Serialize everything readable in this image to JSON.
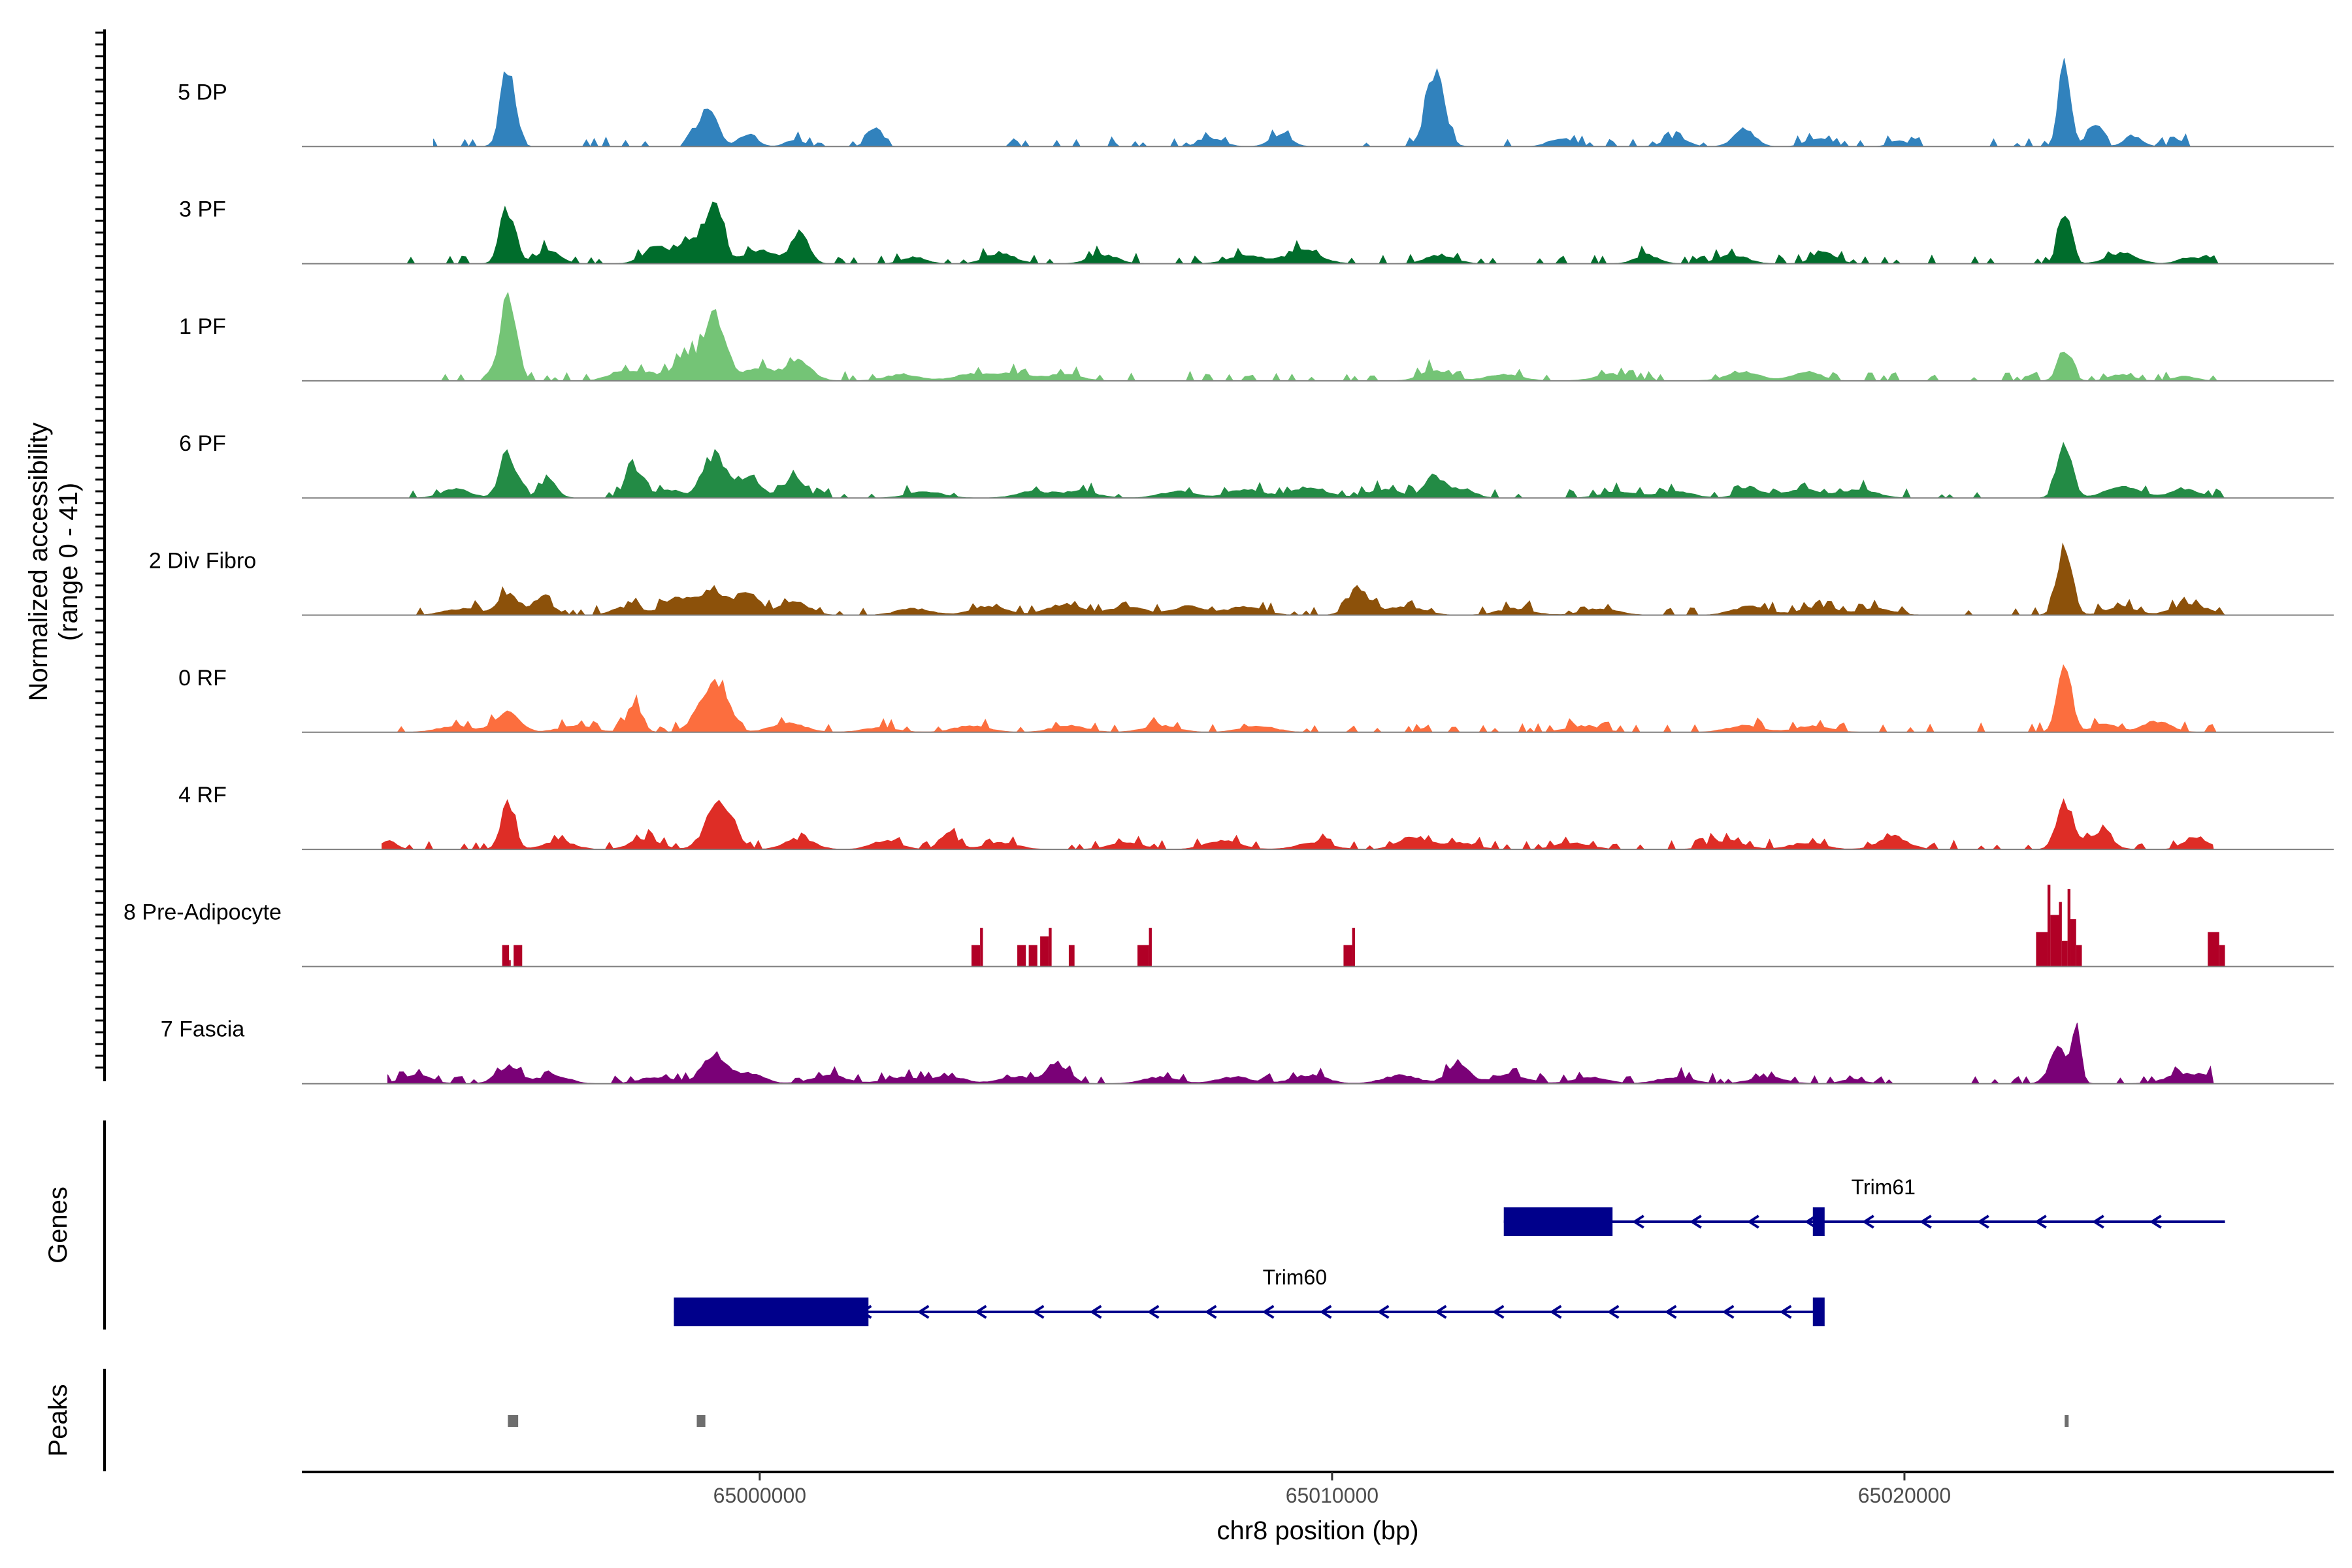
{
  "chart_data": {
    "type": "coverage-track",
    "title": "",
    "ylabel_line1": "Normalized accessibility",
    "ylabel_line2": "(range 0 - 41)",
    "y_range": [
      0,
      41
    ],
    "xlabel": "chr8 position (bp)",
    "x_range": [
      64992000,
      65027500
    ],
    "x_ticks": [
      {
        "value": 65000000,
        "label": "65000000"
      },
      {
        "value": 65010000,
        "label": "65010000"
      },
      {
        "value": 65020000,
        "label": "65020000"
      }
    ],
    "genes_label": "Genes",
    "peaks_label": "Peaks",
    "tracks": [
      {
        "name": "5 DP",
        "color": "#3182bd",
        "start": 64994300,
        "end": 65025000,
        "peaks": [
          [
            64995600,
            38,
            120
          ],
          [
            65002000,
            8,
            120
          ],
          [
            64999100,
            18,
            160
          ],
          [
            64999800,
            6,
            150
          ],
          [
            65000600,
            3,
            150
          ],
          [
            65007900,
            4,
            200
          ],
          [
            65009100,
            5,
            180
          ],
          [
            65011800,
            34,
            160
          ],
          [
            65014000,
            4,
            200
          ],
          [
            65016000,
            4,
            200
          ],
          [
            65017200,
            8,
            180
          ],
          [
            65018500,
            4,
            200
          ],
          [
            65019900,
            3,
            150
          ],
          [
            65022800,
            40,
            100
          ],
          [
            65023300,
            10,
            120
          ],
          [
            65024000,
            5,
            150
          ],
          [
            65024800,
            3,
            100
          ]
        ]
      },
      {
        "name": "3 PF",
        "color": "#006d2c",
        "start": 64993700,
        "end": 65025500,
        "peaks": [
          [
            64995600,
            25,
            130
          ],
          [
            64996300,
            6,
            200
          ],
          [
            64998200,
            8,
            220
          ],
          [
            64998800,
            10,
            200
          ],
          [
            64999200,
            28,
            150
          ],
          [
            65000000,
            6,
            300
          ],
          [
            65000700,
            14,
            150
          ],
          [
            65002700,
            3,
            200
          ],
          [
            65004200,
            5,
            250
          ],
          [
            65006000,
            4,
            250
          ],
          [
            65008500,
            4,
            300
          ],
          [
            65009500,
            6,
            300
          ],
          [
            65011900,
            4,
            250
          ],
          [
            65015500,
            4,
            200
          ],
          [
            65017000,
            4,
            250
          ],
          [
            65018600,
            5,
            200
          ],
          [
            65022800,
            22,
            110
          ],
          [
            65023800,
            5,
            250
          ],
          [
            65025000,
            3,
            200
          ]
        ]
      },
      {
        "name": "1 PF",
        "color": "#74c476",
        "start": 64994300,
        "end": 65025500,
        "peaks": [
          [
            64995600,
            41,
            140
          ],
          [
            64997600,
            4,
            250
          ],
          [
            64998100,
            3,
            300
          ],
          [
            64998700,
            12,
            180
          ],
          [
            64999200,
            28,
            180
          ],
          [
            65000000,
            6,
            300
          ],
          [
            65000700,
            8,
            220
          ],
          [
            65002500,
            3,
            300
          ],
          [
            65003700,
            3,
            300
          ],
          [
            65004400,
            3,
            300
          ],
          [
            65005300,
            3,
            300
          ],
          [
            65011800,
            5,
            250
          ],
          [
            65013000,
            3,
            300
          ],
          [
            65014900,
            3,
            300
          ],
          [
            65017200,
            4,
            300
          ],
          [
            65018300,
            4,
            250
          ],
          [
            65022800,
            14,
            120
          ],
          [
            65023800,
            3,
            200
          ],
          [
            65024900,
            2,
            200
          ]
        ]
      },
      {
        "name": "6 PF",
        "color": "#238b45",
        "start": 64993600,
        "end": 65025600,
        "peaks": [
          [
            64995600,
            22,
            140
          ],
          [
            64996300,
            8,
            150
          ],
          [
            64994700,
            4,
            250
          ],
          [
            64997800,
            14,
            150
          ],
          [
            64998400,
            4,
            200
          ],
          [
            64999200,
            20,
            200
          ],
          [
            64999800,
            10,
            200
          ],
          [
            65000600,
            10,
            180
          ],
          [
            65002900,
            3,
            300
          ],
          [
            65004800,
            3,
            300
          ],
          [
            65005600,
            3,
            300
          ],
          [
            65007300,
            3,
            300
          ],
          [
            65008500,
            4,
            300
          ],
          [
            65009600,
            5,
            300
          ],
          [
            65010900,
            4,
            300
          ],
          [
            65011800,
            10,
            180
          ],
          [
            65012300,
            4,
            200
          ],
          [
            65015000,
            3,
            300
          ],
          [
            65016000,
            3,
            300
          ],
          [
            65017300,
            5,
            200
          ],
          [
            65018200,
            4,
            300
          ],
          [
            65019200,
            4,
            300
          ],
          [
            65022800,
            24,
            130
          ],
          [
            65023800,
            5,
            300
          ],
          [
            65024900,
            4,
            250
          ]
        ]
      },
      {
        "name": "2 Div Fibro",
        "color": "#8c510a",
        "start": 64994000,
        "end": 65025600,
        "peaks": [
          [
            64994800,
            3,
            300
          ],
          [
            64995600,
            10,
            180
          ],
          [
            64996200,
            8,
            180
          ],
          [
            64997700,
            4,
            250
          ],
          [
            64998600,
            8,
            250
          ],
          [
            64999200,
            12,
            200
          ],
          [
            64999800,
            10,
            200
          ],
          [
            65000600,
            6,
            250
          ],
          [
            65002700,
            3,
            300
          ],
          [
            65004000,
            4,
            300
          ],
          [
            65005300,
            5,
            300
          ],
          [
            65006400,
            4,
            300
          ],
          [
            65007500,
            4,
            300
          ],
          [
            65008500,
            4,
            300
          ],
          [
            65010500,
            10,
            200
          ],
          [
            65011300,
            4,
            300
          ],
          [
            65013200,
            3,
            300
          ],
          [
            65014700,
            3,
            300
          ],
          [
            65017300,
            4,
            300
          ],
          [
            65018500,
            4,
            300
          ],
          [
            65019500,
            3,
            300
          ],
          [
            65022800,
            30,
            130
          ],
          [
            65023800,
            4,
            250
          ],
          [
            65025000,
            5,
            300
          ]
        ]
      },
      {
        "name": "0 RF",
        "color": "#fc6e3e",
        "start": 64993600,
        "end": 65025600,
        "peaks": [
          [
            64995600,
            10,
            200
          ],
          [
            64994700,
            3,
            300
          ],
          [
            64996800,
            3,
            300
          ],
          [
            64997800,
            12,
            130
          ],
          [
            64999000,
            10,
            200
          ],
          [
            64999300,
            20,
            180
          ],
          [
            65000500,
            4,
            300
          ],
          [
            65002100,
            2,
            300
          ],
          [
            65003700,
            3,
            300
          ],
          [
            65005400,
            3,
            300
          ],
          [
            65007000,
            3,
            300
          ],
          [
            65008700,
            3,
            300
          ],
          [
            65014400,
            3,
            300
          ],
          [
            65017200,
            3,
            300
          ],
          [
            65018400,
            3,
            300
          ],
          [
            65022800,
            34,
            120
          ],
          [
            65023500,
            4,
            200
          ],
          [
            65024400,
            5,
            250
          ]
        ]
      },
      {
        "name": "4 RF",
        "color": "#de2d26",
        "start": 64993400,
        "end": 65025400,
        "peaks": [
          [
            64993500,
            4,
            150
          ],
          [
            64995600,
            22,
            120
          ],
          [
            64996500,
            4,
            250
          ],
          [
            64998000,
            5,
            250
          ],
          [
            64999300,
            24,
            220
          ],
          [
            65000700,
            5,
            250
          ],
          [
            65002200,
            4,
            250
          ],
          [
            65003300,
            8,
            150
          ],
          [
            65004200,
            3,
            300
          ],
          [
            65006400,
            3,
            300
          ],
          [
            65008100,
            4,
            300
          ],
          [
            65009700,
            3,
            300
          ],
          [
            65011400,
            6,
            250
          ],
          [
            65012200,
            3,
            300
          ],
          [
            65014200,
            3,
            300
          ],
          [
            65016900,
            4,
            300
          ],
          [
            65018300,
            3,
            300
          ],
          [
            65019800,
            6,
            250
          ],
          [
            65022800,
            22,
            140
          ],
          [
            65023400,
            8,
            200
          ],
          [
            65025100,
            6,
            200
          ]
        ]
      },
      {
        "name": "8 Pre-Adipocyte",
        "color": "#b10026",
        "start": 64995400,
        "end": 65025600,
        "blocks": [
          [
            64995500,
            64995620,
            10
          ],
          [
            64995620,
            64995650,
            3
          ],
          [
            64995700,
            64995850,
            10
          ],
          [
            65003700,
            65003850,
            10
          ],
          [
            65003850,
            65003900,
            18
          ],
          [
            65004500,
            65004650,
            10
          ],
          [
            65004700,
            65004850,
            10
          ],
          [
            65004900,
            65005050,
            14
          ],
          [
            65005050,
            65005100,
            18
          ],
          [
            65005400,
            65005500,
            10
          ],
          [
            65006600,
            65006800,
            10
          ],
          [
            65006800,
            65006850,
            18
          ],
          [
            65010200,
            65010350,
            10
          ],
          [
            65010350,
            65010400,
            18
          ],
          [
            65022300,
            65022500,
            16
          ],
          [
            65022500,
            65022550,
            38
          ],
          [
            65022550,
            65022700,
            24
          ],
          [
            65022700,
            65022750,
            30
          ],
          [
            65022750,
            65022850,
            12
          ],
          [
            65022850,
            65022900,
            36
          ],
          [
            65022900,
            65023000,
            22
          ],
          [
            65023000,
            65023100,
            10
          ],
          [
            65025300,
            65025500,
            16
          ],
          [
            65025500,
            65025600,
            10
          ]
        ]
      },
      {
        "name": "7 Fascia",
        "color": "#7a0177",
        "start": 64993500,
        "end": 65025400,
        "peaks": [
          [
            64994000,
            4,
            250
          ],
          [
            64995600,
            8,
            200
          ],
          [
            64996400,
            4,
            250
          ],
          [
            64998200,
            3,
            300
          ],
          [
            64999200,
            14,
            200
          ],
          [
            64999800,
            5,
            250
          ],
          [
            65001200,
            4,
            300
          ],
          [
            65002500,
            3,
            300
          ],
          [
            65003300,
            3,
            300
          ],
          [
            65004500,
            3,
            300
          ],
          [
            65005200,
            9,
            200
          ],
          [
            65007000,
            3,
            300
          ],
          [
            65008300,
            3,
            300
          ],
          [
            65009600,
            4,
            300
          ],
          [
            65011200,
            4,
            300
          ],
          [
            65012200,
            8,
            200
          ],
          [
            65013100,
            4,
            300
          ],
          [
            65014500,
            3,
            300
          ],
          [
            65016000,
            3,
            300
          ],
          [
            65017600,
            3,
            300
          ],
          [
            65019100,
            2,
            200
          ],
          [
            65022700,
            16,
            160
          ],
          [
            65023000,
            24,
            80
          ],
          [
            65024800,
            3,
            300
          ],
          [
            65025200,
            3,
            300
          ]
        ]
      }
    ],
    "genes": [
      {
        "name": "Trim61",
        "strand": "-",
        "tx_start": 65013000,
        "tx_end": 65025600,
        "exons": [
          [
            65013000,
            65014900
          ],
          [
            65018400,
            65018600
          ]
        ]
      },
      {
        "name": "Trim60",
        "strand": "-",
        "tx_start": 64998500,
        "tx_end": 65018600,
        "exons": [
          [
            64998500,
            65001900
          ],
          [
            65018400,
            65018600
          ]
        ]
      }
    ],
    "peak_regions": [
      [
        64995600,
        64995780
      ],
      [
        64998900,
        64999050
      ],
      [
        65022800,
        65022850
      ]
    ]
  }
}
